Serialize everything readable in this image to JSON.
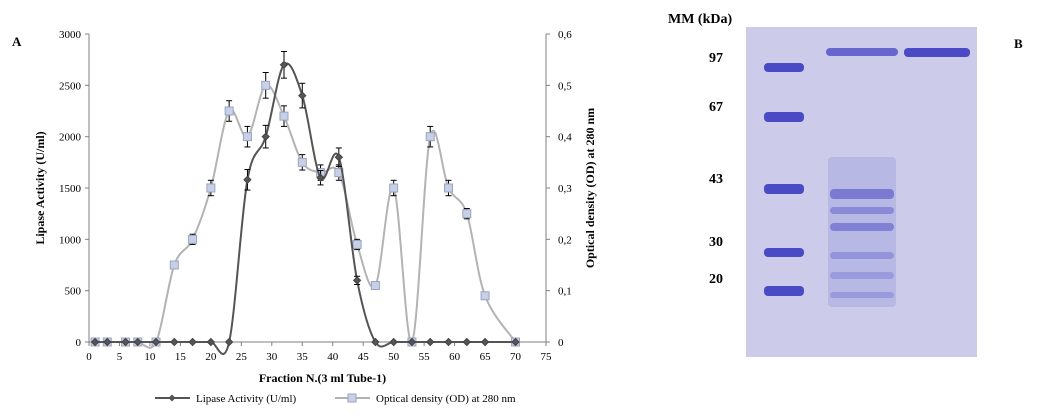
{
  "panels": {
    "a_label": "A",
    "b_label": "B"
  },
  "chart_data": {
    "type": "line",
    "x": {
      "label": "Fraction N.(3  ml Tube-1)",
      "range": [
        0,
        75
      ],
      "ticks": [
        0,
        5,
        10,
        15,
        20,
        25,
        30,
        35,
        40,
        45,
        50,
        55,
        60,
        65,
        70,
        75
      ]
    },
    "y_left": {
      "label": "Lipase Activity (U/ml)",
      "range": [
        0,
        3000
      ],
      "ticks": [
        "0",
        "500",
        "1000",
        "1500",
        "2000",
        "2500",
        "3000"
      ]
    },
    "y_right": {
      "label": "Optical density (OD) at 280 nm",
      "range": [
        0,
        0.6
      ],
      "ticks": [
        "0",
        "0,1",
        "0,2",
        "0,3",
        "0,4",
        "0,5",
        "0,6"
      ]
    },
    "grid": false,
    "legend_position": "bottom",
    "series": [
      {
        "name": "Lipase Activity  (U/ml)",
        "axis": "left",
        "color": "#555555",
        "marker": "diamond",
        "x": [
          1,
          3,
          6,
          8,
          11,
          14,
          17,
          20,
          23,
          26,
          29,
          32,
          35,
          38,
          41,
          44,
          47,
          50,
          53,
          56,
          59,
          62,
          65,
          70
        ],
        "y": [
          0,
          0,
          0,
          0,
          0,
          0,
          0,
          0,
          0,
          1580,
          2000,
          2700,
          2400,
          1600,
          1800,
          600,
          0,
          0,
          0,
          0,
          0,
          0,
          0,
          0
        ],
        "err": [
          0,
          0,
          0,
          0,
          0,
          0,
          0,
          0,
          0,
          100,
          110,
          130,
          120,
          70,
          90,
          40,
          0,
          0,
          0,
          0,
          0,
          0,
          0,
          0
        ]
      },
      {
        "name": "Optical density (OD)  at 280 nm",
        "axis": "right",
        "color": "#b3b3b3",
        "marker": "square",
        "x": [
          1,
          3,
          6,
          8,
          11,
          14,
          17,
          20,
          23,
          26,
          29,
          32,
          35,
          38,
          41,
          44,
          47,
          50,
          53,
          56,
          59,
          62,
          65,
          70
        ],
        "y": [
          0,
          0,
          0,
          0,
          0,
          0.15,
          0.2,
          0.3,
          0.45,
          0.4,
          0.5,
          0.44,
          0.35,
          0.33,
          0.33,
          0.19,
          0.11,
          0.3,
          0,
          0.4,
          0.3,
          0.25,
          0.09,
          0
        ],
        "err": [
          0,
          0,
          0,
          0,
          0,
          0.005,
          0.01,
          0.015,
          0.02,
          0.02,
          0.025,
          0.02,
          0.015,
          0.015,
          0.015,
          0.01,
          0.005,
          0.015,
          0,
          0.02,
          0.015,
          0.01,
          0.005,
          0
        ]
      }
    ]
  },
  "gel": {
    "title": "MM (kDa)",
    "markers": [
      "97",
      "67",
      "43",
      "30",
      "20"
    ],
    "background_color": "#ccccea",
    "band_color": "#5050c8"
  }
}
